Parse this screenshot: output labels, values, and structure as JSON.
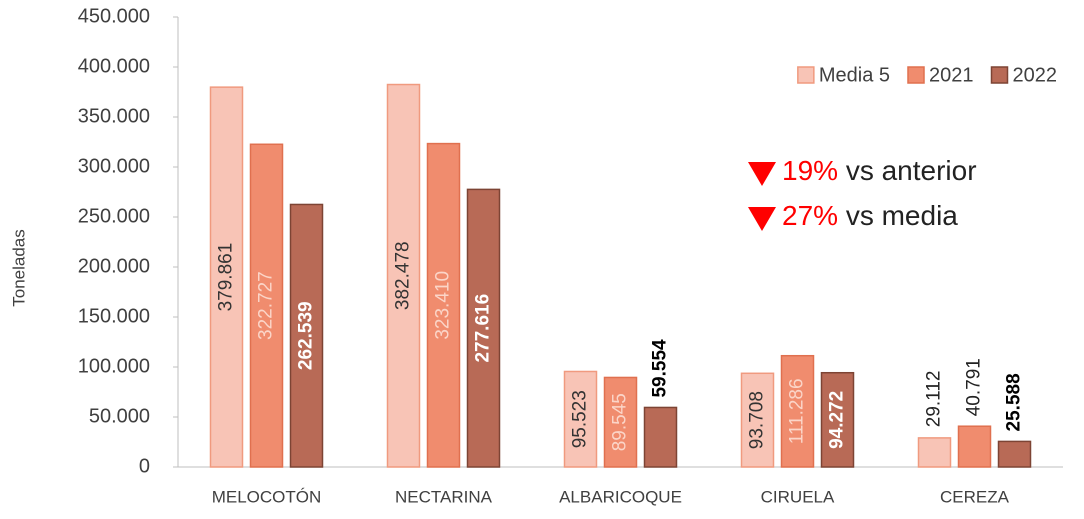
{
  "chart_data": {
    "type": "bar",
    "y_label": "Toneladas",
    "categories": [
      "MELOCOTÓN",
      "NECTARINA",
      "ALBARICOQUE",
      "CIRUELA",
      "CEREZA"
    ],
    "series": [
      {
        "name": "Media 5",
        "color": "#f8c4b6",
        "edge": "#f09a7f",
        "values": [
          379861,
          382478,
          95523,
          93708,
          29112
        ],
        "value_labels": [
          "379.861",
          "382.478",
          "95.523",
          "93.708",
          "29.112"
        ]
      },
      {
        "name": "2021",
        "color": "#f08c6e",
        "edge": "#e0704f",
        "values": [
          322727,
          323410,
          89545,
          111286,
          40791
        ],
        "value_labels": [
          "322.727",
          "323.410",
          "89.545",
          "111.286",
          "40.791"
        ]
      },
      {
        "name": "2022",
        "color": "#b86a56",
        "edge": "#7d4434",
        "values": [
          262539,
          277616,
          59554,
          94272,
          25588
        ],
        "value_labels": [
          "262.539",
          "277.616",
          "59.554",
          "94.272",
          "25.588"
        ]
      }
    ],
    "ylim": [
      0,
      450000
    ],
    "yticks": [
      0,
      {
        "value": 50000,
        "label": "50.000"
      },
      {
        "value": 100000,
        "label": "100.000"
      },
      {
        "value": 150000,
        "label": "150.000"
      },
      {
        "value": 200000,
        "label": "200.000"
      },
      {
        "value": 250000,
        "label": "250.000"
      },
      {
        "value": 300000,
        "label": "300.000"
      },
      {
        "value": 350000,
        "label": "350.000"
      },
      {
        "value": 400000,
        "label": "400.000"
      },
      {
        "value": 450000,
        "label": "450.000"
      }
    ],
    "legend": "upper right",
    "annotations": [
      {
        "percent": "19%",
        "text": "vs anterior"
      },
      {
        "percent": "27%",
        "text": "vs media"
      }
    ]
  }
}
